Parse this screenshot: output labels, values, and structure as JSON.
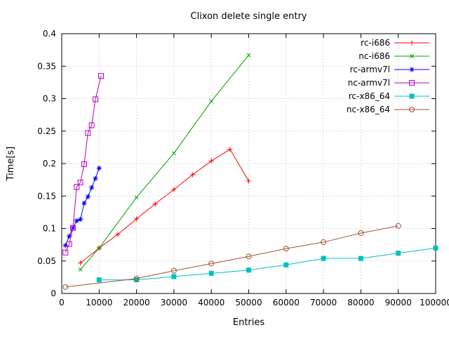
{
  "chart_data": {
    "type": "line",
    "title": "Clixon delete single entry",
    "xlabel": "Entries",
    "ylabel": "Time[s]",
    "xlim": [
      0,
      100000
    ],
    "ylim": [
      0,
      0.4
    ],
    "xtick_step": 10000,
    "ytick_step": 0.05,
    "grid": true,
    "legend_position": "top-right",
    "background_color": "#ffffff",
    "axis_color": "#000000",
    "grid_color": "#c4c4c4",
    "series": [
      {
        "name": "rc-i686",
        "color": "#ff0000",
        "marker": "plus",
        "points": [
          [
            5000,
            0.047
          ],
          [
            10000,
            0.07
          ],
          [
            15000,
            0.091
          ],
          [
            20000,
            0.115
          ],
          [
            25000,
            0.138
          ],
          [
            30000,
            0.16
          ],
          [
            35000,
            0.183
          ],
          [
            40000,
            0.204
          ],
          [
            45000,
            0.222
          ],
          [
            50000,
            0.173
          ]
        ]
      },
      {
        "name": "nc-i686",
        "color": "#00a000",
        "marker": "cross",
        "points": [
          [
            5000,
            0.037
          ],
          [
            10000,
            0.07
          ],
          [
            20000,
            0.148
          ],
          [
            30000,
            0.216
          ],
          [
            40000,
            0.296
          ],
          [
            50000,
            0.367
          ]
        ]
      },
      {
        "name": "rc-armv7l",
        "color": "#0000ff",
        "marker": "asterisk",
        "points": [
          [
            1000,
            0.074
          ],
          [
            2000,
            0.088
          ],
          [
            3000,
            0.101
          ],
          [
            4000,
            0.112
          ],
          [
            5000,
            0.114
          ],
          [
            6000,
            0.139
          ],
          [
            7000,
            0.149
          ],
          [
            8000,
            0.163
          ],
          [
            9000,
            0.177
          ],
          [
            10000,
            0.193
          ]
        ]
      },
      {
        "name": "nc-armv7l",
        "color": "#b400c8",
        "marker": "square-open",
        "points": [
          [
            1000,
            0.063
          ],
          [
            2000,
            0.076
          ],
          [
            3000,
            0.101
          ],
          [
            4000,
            0.164
          ],
          [
            5000,
            0.171
          ],
          [
            6000,
            0.199
          ],
          [
            7000,
            0.247
          ],
          [
            8000,
            0.259
          ],
          [
            9000,
            0.299
          ],
          [
            10500,
            0.335
          ]
        ]
      },
      {
        "name": "rc-x86_64",
        "color": "#00c0c0",
        "marker": "square-filled",
        "points": [
          [
            10000,
            0.021
          ],
          [
            20000,
            0.021
          ],
          [
            30000,
            0.026
          ],
          [
            40000,
            0.031
          ],
          [
            50000,
            0.036
          ],
          [
            60000,
            0.044
          ],
          [
            70000,
            0.054
          ],
          [
            80000,
            0.054
          ],
          [
            90000,
            0.062
          ],
          [
            100000,
            0.07
          ]
        ]
      },
      {
        "name": "nc-x86_64",
        "color": "#a0522d",
        "marker": "circle-open",
        "points": [
          [
            1000,
            0.01
          ],
          [
            20000,
            0.023
          ],
          [
            30000,
            0.035
          ],
          [
            40000,
            0.046
          ],
          [
            50000,
            0.057
          ],
          [
            60000,
            0.069
          ],
          [
            70000,
            0.079
          ],
          [
            80000,
            0.093
          ],
          [
            90000,
            0.104
          ]
        ]
      }
    ]
  }
}
